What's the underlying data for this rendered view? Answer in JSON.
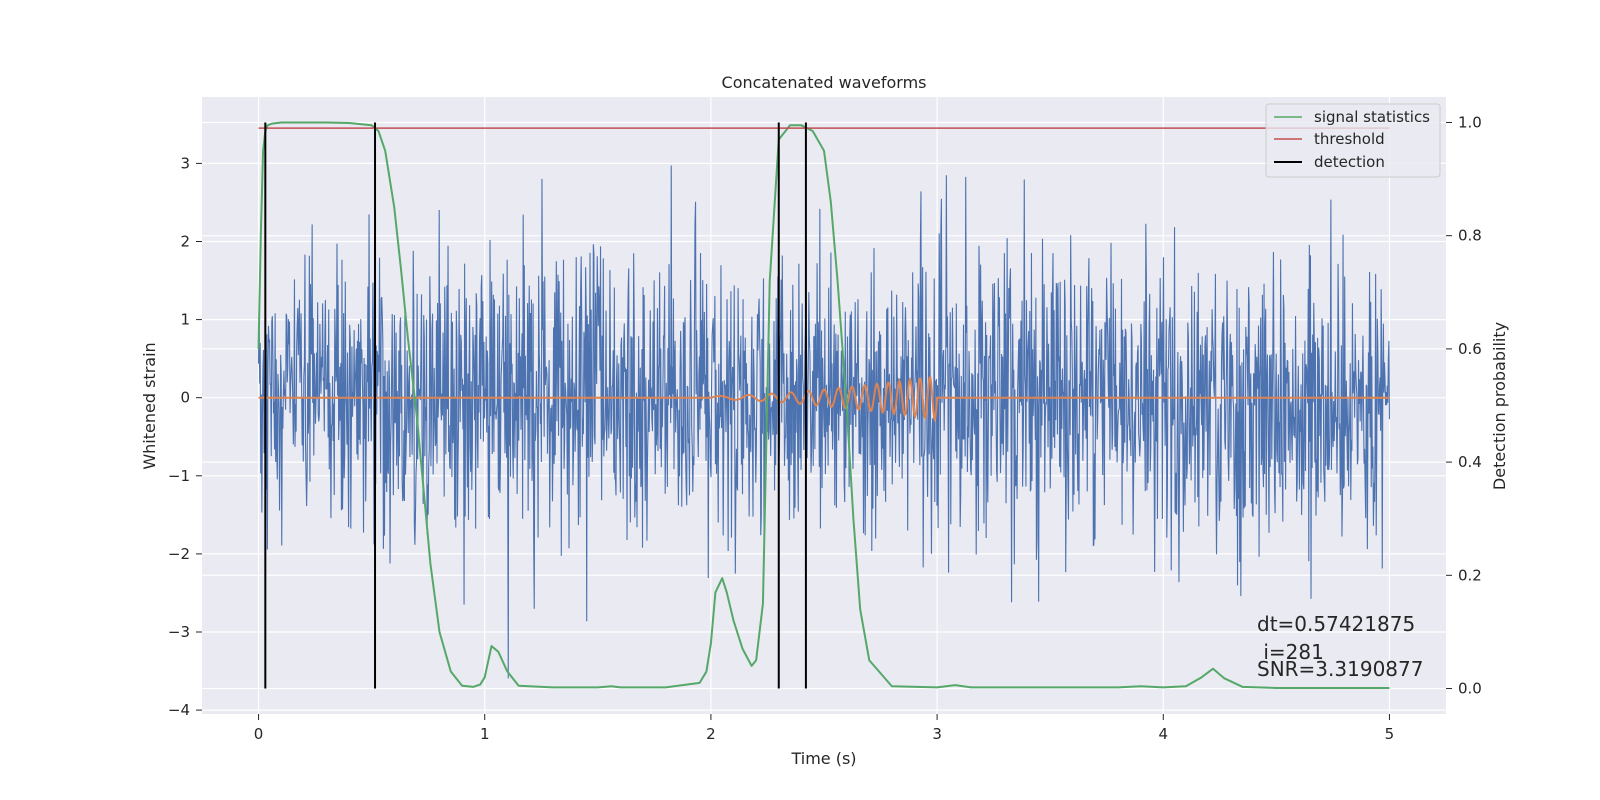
{
  "chart_data": {
    "type": "line",
    "title": "Concatenated waveforms",
    "xlabel": "Time (s)",
    "ylabel": "Whitened strain",
    "y2label": "Detection probability",
    "xlim": [
      -0.25,
      5.25
    ],
    "ylim": [
      -4.05,
      3.85
    ],
    "y2lim": [
      -0.045,
      1.045
    ],
    "x_ticks": [
      0,
      1,
      2,
      3,
      4,
      5
    ],
    "y_ticks": [
      -4,
      -3,
      -2,
      -1,
      0,
      1,
      2,
      3
    ],
    "y2_ticks": [
      0.0,
      0.2,
      0.4,
      0.6,
      0.8,
      1.0
    ],
    "x_tick_labels": [
      "0",
      "1",
      "2",
      "3",
      "4",
      "5"
    ],
    "y_tick_labels": [
      "−4",
      "−3",
      "−2",
      "−1",
      "0",
      "1",
      "2",
      "3"
    ],
    "y2_tick_labels": [
      "0.0",
      "0.2",
      "0.4",
      "0.6",
      "0.8",
      "1.0"
    ],
    "grid": true,
    "legend_position": "top-right",
    "legend": [
      {
        "label": "signal statistics",
        "color": "#55a868"
      },
      {
        "label": "threshold",
        "color": "#c44e52"
      },
      {
        "label": "detection",
        "color": "#000000"
      }
    ],
    "noise": {
      "name": "whitened strain",
      "color": "#4c72b0",
      "x_range": [
        0,
        5
      ],
      "samples": 2048,
      "std": 0.9,
      "range": [
        -3.7,
        3.45
      ]
    },
    "injected_waveform": {
      "name": "injected chirp",
      "color": "#dd8452",
      "x_range": [
        0,
        5
      ],
      "chirp_start": 2.0,
      "chirp_end": 3.0,
      "amplitude_start": 0.02,
      "amplitude_end": 0.28
    },
    "signal_statistics": {
      "color": "#55a868",
      "x": [
        0,
        0.01,
        0.02,
        0.03,
        0.04,
        0.06,
        0.1,
        0.2,
        0.3,
        0.4,
        0.45,
        0.5,
        0.53,
        0.56,
        0.6,
        0.63,
        0.66,
        0.7,
        0.73,
        0.76,
        0.8,
        0.85,
        0.9,
        0.95,
        0.98,
        1.0,
        1.03,
        1.06,
        1.1,
        1.15,
        1.3,
        1.5,
        1.56,
        1.6,
        1.8,
        1.95,
        1.98,
        2.0,
        2.02,
        2.05,
        2.07,
        2.1,
        2.14,
        2.18,
        2.2,
        2.23,
        2.26,
        2.3,
        2.35,
        2.4,
        2.45,
        2.5,
        2.53,
        2.56,
        2.6,
        2.63,
        2.66,
        2.7,
        2.8,
        3.0,
        3.08,
        3.15,
        3.5,
        3.8,
        3.9,
        4.0,
        4.1,
        4.17,
        4.22,
        4.27,
        4.35,
        4.5,
        5.0
      ],
      "y": [
        0.6,
        0.8,
        0.95,
        0.985,
        0.995,
        0.998,
        1.0,
        1.0,
        1.0,
        0.999,
        0.997,
        0.995,
        0.985,
        0.95,
        0.85,
        0.74,
        0.62,
        0.48,
        0.35,
        0.22,
        0.1,
        0.03,
        0.005,
        0.003,
        0.007,
        0.02,
        0.075,
        0.065,
        0.03,
        0.005,
        0.002,
        0.002,
        0.004,
        0.002,
        0.002,
        0.01,
        0.03,
        0.08,
        0.17,
        0.195,
        0.17,
        0.12,
        0.07,
        0.04,
        0.05,
        0.15,
        0.72,
        0.97,
        0.995,
        0.995,
        0.985,
        0.95,
        0.86,
        0.72,
        0.5,
        0.3,
        0.14,
        0.05,
        0.004,
        0.002,
        0.006,
        0.002,
        0.002,
        0.002,
        0.004,
        0.002,
        0.004,
        0.02,
        0.035,
        0.018,
        0.003,
        0.001,
        0.001
      ]
    },
    "threshold": {
      "value": 0.99,
      "x_range": [
        0,
        5
      ],
      "color": "#c44e52"
    },
    "detections": [
      0.03,
      0.515,
      2.3,
      2.42
    ],
    "annotations": {
      "dt": "dt=0.57421875",
      "i": " i=281",
      "snr": "SNR=3.3190877"
    }
  }
}
